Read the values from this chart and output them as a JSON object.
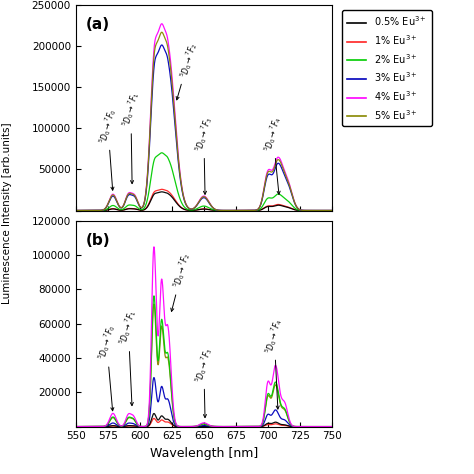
{
  "legend_labels": [
    "0.5% Eu$^{3+}$",
    "1% Eu$^{3+}$",
    "2% Eu$^{3+}$",
    "3% Eu$^{3+}$",
    "4% Eu$^{3+}$",
    "5% Eu$^{3+}$"
  ],
  "legend_colors": [
    "#000000",
    "#ff2222",
    "#00cc00",
    "#0000bb",
    "#ff00ff",
    "#888800"
  ],
  "xlabel": "Wavelength [nm]",
  "ylabel": "Luminescence Intensity [arb.units]",
  "xlim": [
    550,
    750
  ],
  "panel_a": {
    "ylim": [
      0,
      250000
    ],
    "yticks": [
      0,
      50000,
      100000,
      150000,
      200000,
      250000
    ],
    "label": "(a)"
  },
  "panel_b": {
    "ylim": [
      0,
      120000
    ],
    "yticks": [
      0,
      20000,
      40000,
      60000,
      80000,
      100000,
      120000
    ],
    "label": "(b)"
  }
}
